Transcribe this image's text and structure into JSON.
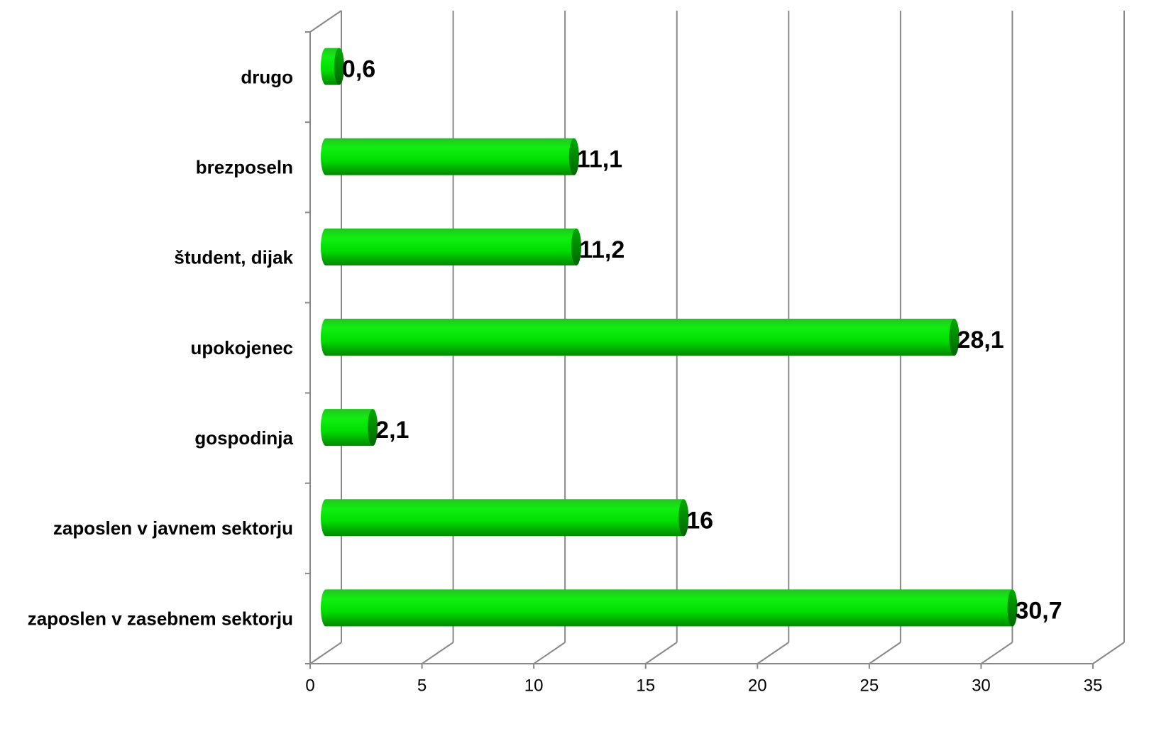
{
  "chart_data": {
    "type": "bar",
    "orientation": "horizontal",
    "categories": [
      "drugo",
      "brezposeln",
      "študent, dijak",
      "upokojenec",
      "gospodinja",
      "zaposlen v javnem sektorju",
      "zaposlen v zasebnem sektorju"
    ],
    "values": [
      0.6,
      11.1,
      11.2,
      28.1,
      2.1,
      16,
      30.7
    ],
    "value_labels": [
      "0,6",
      "11,1",
      "11,2",
      "28,1",
      "2,1",
      "16",
      "30,7"
    ],
    "color": "#00dd00",
    "xlim": [
      0,
      35
    ],
    "xticks": [
      0,
      5,
      10,
      15,
      20,
      25,
      30,
      35
    ],
    "grid": true
  }
}
